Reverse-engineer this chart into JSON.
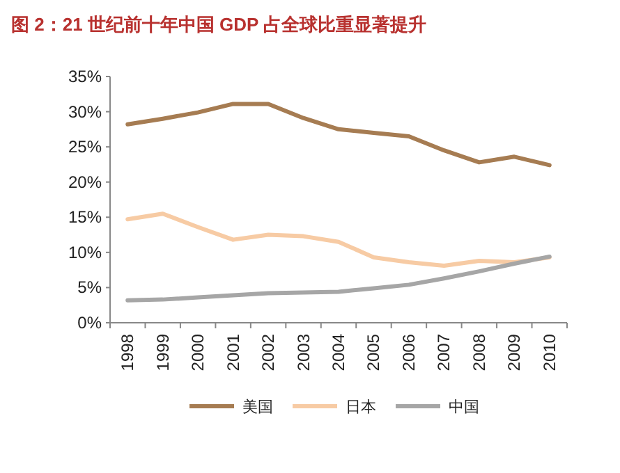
{
  "chart_data": {
    "type": "line",
    "title": "图 2：21 世纪前十年中国 GDP 占全球比重显著提升",
    "categories": [
      "1998",
      "1999",
      "2000",
      "2001",
      "2002",
      "2003",
      "2004",
      "2005",
      "2006",
      "2007",
      "2008",
      "2009",
      "2010"
    ],
    "series": [
      {
        "name": "美国",
        "color": "#a67c52",
        "values": [
          28.2,
          29.0,
          29.9,
          31.1,
          31.1,
          29.1,
          27.5,
          27.0,
          26.5,
          24.5,
          22.8,
          23.6,
          22.4
        ]
      },
      {
        "name": "日本",
        "color": "#f7cba4",
        "values": [
          14.7,
          15.5,
          13.6,
          11.8,
          12.5,
          12.3,
          11.5,
          9.3,
          8.6,
          8.1,
          8.8,
          8.6,
          9.3
        ]
      },
      {
        "name": "中国",
        "color": "#a6a6a6",
        "values": [
          3.2,
          3.3,
          3.6,
          3.9,
          4.2,
          4.3,
          4.4,
          4.9,
          5.4,
          6.3,
          7.3,
          8.4,
          9.4
        ]
      }
    ],
    "ylim": [
      0,
      35
    ],
    "yticks": [
      {
        "value": 0,
        "label": "0%"
      },
      {
        "value": 5,
        "label": "5%"
      },
      {
        "value": 10,
        "label": "10%"
      },
      {
        "value": 15,
        "label": "15%"
      },
      {
        "value": 20,
        "label": "20%"
      },
      {
        "value": 25,
        "label": "25%"
      },
      {
        "value": 30,
        "label": "30%"
      },
      {
        "value": 35,
        "label": "35%"
      }
    ],
    "grid": false,
    "legend": "bottom",
    "marker": "none",
    "line_style": "solid"
  }
}
